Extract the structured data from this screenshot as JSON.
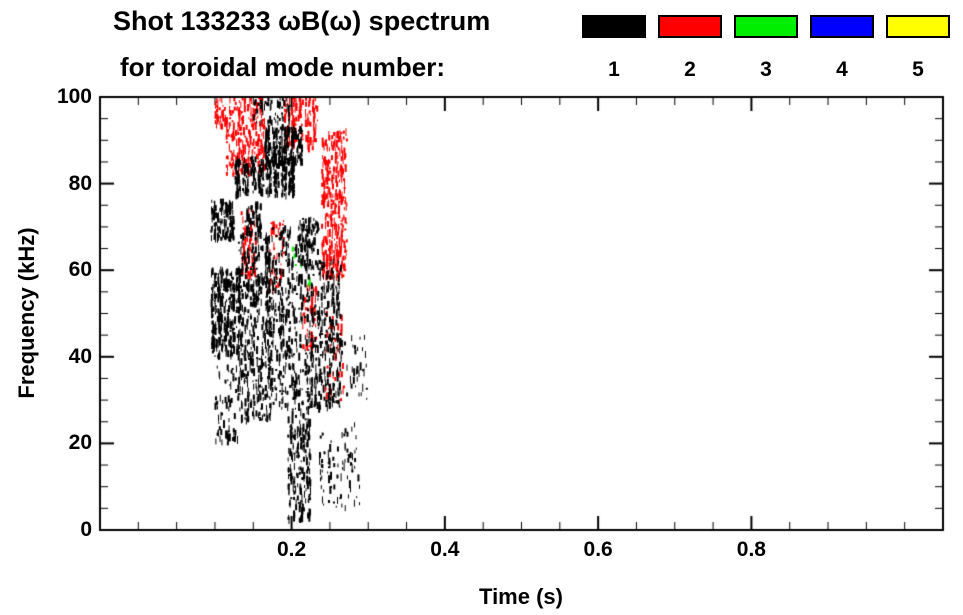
{
  "figure": {
    "title_line1": "Shot 133233 ωB(ω) spectrum",
    "title_line2": "for toroidal mode number:"
  },
  "chart_data": {
    "type": "scatter",
    "title": "Shot 133233 ωB(ω) spectrum for toroidal mode number",
    "xlabel": "Time (s)",
    "ylabel": "Frequency (kHz)",
    "xlim": [
      -0.05,
      1.05
    ],
    "ylim": [
      0,
      100
    ],
    "grid": false,
    "x_tick_values": [
      0.2,
      0.4,
      0.6,
      0.8
    ],
    "x_tick_labels": [
      "0.2",
      "0.4",
      "0.6",
      "0.8"
    ],
    "x_minor_step": 0.05,
    "y_tick_values": [
      0,
      20,
      40,
      60,
      80,
      100
    ],
    "y_tick_labels": [
      "0",
      "20",
      "40",
      "60",
      "80",
      "100"
    ],
    "y_minor_step": 5,
    "legend": {
      "position": "top-right",
      "entries": [
        {
          "label": "1",
          "color": "#000000"
        },
        {
          "label": "2",
          "color": "#ff0000"
        },
        {
          "label": "3",
          "color": "#00ee00"
        },
        {
          "label": "4",
          "color": "#0000ff"
        },
        {
          "label": "5",
          "color": "#ffff00"
        }
      ]
    },
    "clusters": [
      {
        "mode": 1,
        "t": [
          0.095,
          0.125
        ],
        "f": [
          67,
          76
        ],
        "n": 120,
        "bands": 4
      },
      {
        "mode": 1,
        "t": [
          0.095,
          0.135
        ],
        "f": [
          40,
          60
        ],
        "n": 350,
        "bands": 5
      },
      {
        "mode": 1,
        "t": [
          0.1,
          0.13
        ],
        "f": [
          20,
          38
        ],
        "n": 60,
        "bands": 4
      },
      {
        "mode": 1,
        "t": [
          0.13,
          0.175
        ],
        "f": [
          25,
          68
        ],
        "n": 400,
        "bands": 6
      },
      {
        "mode": 1,
        "t": [
          0.125,
          0.205
        ],
        "f": [
          77,
          86
        ],
        "n": 300,
        "bands": 8
      },
      {
        "mode": 1,
        "t": [
          0.165,
          0.215
        ],
        "f": [
          84,
          93
        ],
        "n": 250,
        "bands": 6
      },
      {
        "mode": 1,
        "t": [
          0.165,
          0.225
        ],
        "f": [
          28,
          70
        ],
        "n": 450,
        "bands": 7
      },
      {
        "mode": 1,
        "t": [
          0.195,
          0.225
        ],
        "f": [
          2,
          28
        ],
        "n": 200,
        "bands": 4
      },
      {
        "mode": 1,
        "t": [
          0.225,
          0.265
        ],
        "f": [
          28,
          62
        ],
        "n": 300,
        "bands": 5
      },
      {
        "mode": 1,
        "t": [
          0.235,
          0.29
        ],
        "f": [
          5,
          25
        ],
        "n": 80,
        "bands": 6
      },
      {
        "mode": 1,
        "t": [
          0.26,
          0.3
        ],
        "f": [
          30,
          45
        ],
        "n": 40,
        "bands": 5
      },
      {
        "mode": 1,
        "t": [
          0.14,
          0.16
        ],
        "f": [
          68,
          76
        ],
        "n": 60,
        "bands": 3
      },
      {
        "mode": 1,
        "t": [
          0.21,
          0.235
        ],
        "f": [
          60,
          72
        ],
        "n": 80,
        "bands": 4
      },
      {
        "mode": 1,
        "t": [
          0.15,
          0.2
        ],
        "f": [
          94,
          100
        ],
        "n": 60,
        "bands": 6
      },
      {
        "mode": 2,
        "t": [
          0.115,
          0.165
        ],
        "f": [
          82,
          100
        ],
        "n": 250,
        "bands": 7
      },
      {
        "mode": 2,
        "t": [
          0.1,
          0.115
        ],
        "f": [
          93,
          100
        ],
        "n": 40,
        "bands": 2
      },
      {
        "mode": 2,
        "t": [
          0.19,
          0.235
        ],
        "f": [
          88,
          100
        ],
        "n": 150,
        "bands": 5
      },
      {
        "mode": 2,
        "t": [
          0.24,
          0.272
        ],
        "f": [
          58,
          92
        ],
        "n": 350,
        "bands": 5
      },
      {
        "mode": 2,
        "t": [
          0.17,
          0.19
        ],
        "f": [
          55,
          72
        ],
        "n": 50,
        "bands": 3
      },
      {
        "mode": 2,
        "t": [
          0.135,
          0.155
        ],
        "f": [
          58,
          75
        ],
        "n": 60,
        "bands": 3
      },
      {
        "mode": 2,
        "t": [
          0.215,
          0.232
        ],
        "f": [
          42,
          56
        ],
        "n": 50,
        "bands": 3
      },
      {
        "mode": 2,
        "t": [
          0.245,
          0.268
        ],
        "f": [
          30,
          50
        ],
        "n": 40,
        "bands": 4
      },
      {
        "mode": 3,
        "t": [
          0.2,
          0.215
        ],
        "f": [
          60,
          66
        ],
        "n": 8,
        "bands": 2
      },
      {
        "mode": 3,
        "t": [
          0.22,
          0.228
        ],
        "f": [
          55,
          60
        ],
        "n": 4,
        "bands": 1
      }
    ]
  }
}
